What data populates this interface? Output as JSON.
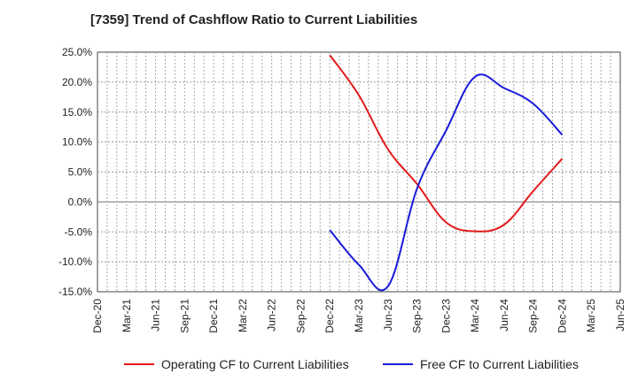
{
  "title": "[7359]  Trend of Cashflow Ratio to Current Liabilities",
  "chart_data": {
    "type": "line",
    "title": "[7359]  Trend of Cashflow Ratio to Current Liabilities",
    "xlabel": "",
    "ylabel": "",
    "x": [
      "Dec-20",
      "Mar-21",
      "Jun-21",
      "Sep-21",
      "Dec-21",
      "Mar-22",
      "Jun-22",
      "Sep-22",
      "Dec-22",
      "Mar-23",
      "Jun-23",
      "Sep-23",
      "Dec-23",
      "Mar-24",
      "Jun-24",
      "Sep-24",
      "Dec-24",
      "Mar-25",
      "Jun-25"
    ],
    "ylim": [
      -15,
      25
    ],
    "yticks": [
      "25.0%",
      "20.0%",
      "15.0%",
      "10.0%",
      "5.0%",
      "0.0%",
      "-5.0%",
      "-10.0%",
      "-15.0%"
    ],
    "ytick_values": [
      25,
      20,
      15,
      10,
      5,
      0,
      -5,
      -10,
      -15
    ],
    "grid": true,
    "legend_position": "bottom",
    "series": [
      {
        "name": "Operating CF to Current Liabilities",
        "color": "#e31a1c",
        "values": [
          null,
          null,
          null,
          null,
          null,
          null,
          null,
          null,
          24.5,
          17.8,
          8.8,
          3.0,
          -3.4,
          -4.9,
          -3.8,
          1.8,
          7.2,
          null,
          null
        ]
      },
      {
        "name": "Free CF to Current Liabilities",
        "color": "#1a1adb",
        "values": [
          null,
          null,
          null,
          null,
          null,
          null,
          null,
          null,
          -4.7,
          -10.5,
          -14.1,
          2.2,
          11.9,
          20.9,
          19.0,
          16.4,
          11.2,
          null,
          null
        ]
      }
    ]
  }
}
